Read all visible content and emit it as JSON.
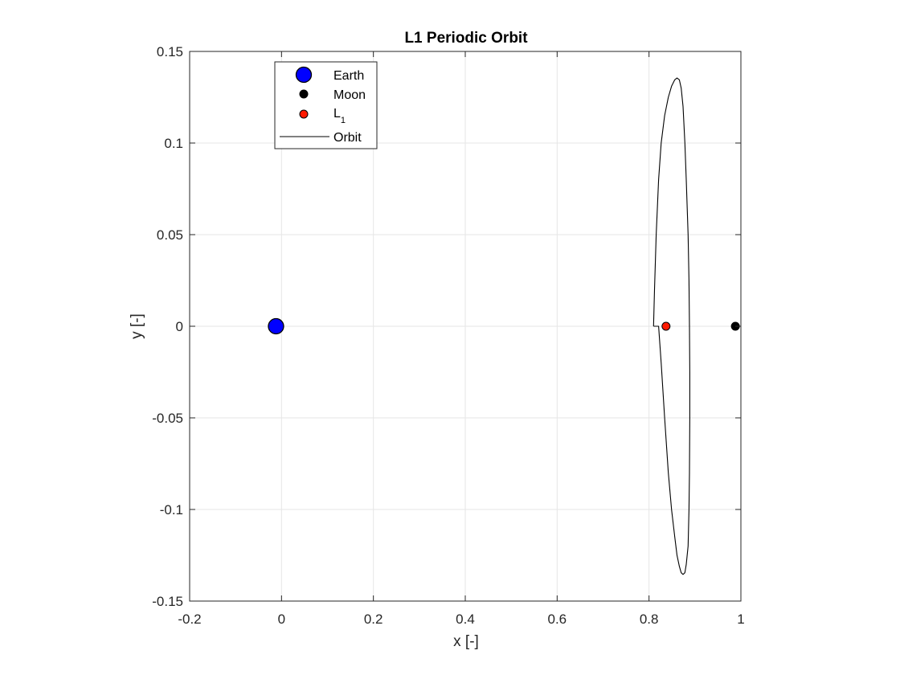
{
  "chart_data": {
    "type": "scatter",
    "title": "L1 Periodic Orbit",
    "xlabel": "x [-]",
    "ylabel": "y [-]",
    "xlim": [
      -0.2,
      1.0
    ],
    "ylim": [
      -0.15,
      0.15
    ],
    "xticks": [
      -0.2,
      0,
      0.2,
      0.4,
      0.6,
      0.8,
      1.0
    ],
    "xtick_labels": [
      "-0.2",
      "0",
      "0.2",
      "0.4",
      "0.6",
      "0.8",
      "1"
    ],
    "yticks": [
      0.15,
      0.1,
      0.05,
      0,
      -0.05,
      -0.1,
      -0.15
    ],
    "ytick_labels": [
      "0.15",
      "0.1",
      "0.05",
      "0",
      "-0.05",
      "-0.1",
      "-0.15"
    ],
    "grid": true,
    "legend_position": "top-left",
    "series": [
      {
        "name": "Earth",
        "kind": "marker",
        "x": [
          -0.012
        ],
        "y": [
          0
        ],
        "color": "#0000ff",
        "marker_size": "large"
      },
      {
        "name": "Moon",
        "kind": "marker",
        "x": [
          0.988
        ],
        "y": [
          0
        ],
        "color": "#000000",
        "marker_size": "small"
      },
      {
        "name": "L",
        "name_subscript": "1",
        "kind": "marker",
        "x": [
          0.837
        ],
        "y": [
          0
        ],
        "color": "#ff1a00",
        "marker_size": "small"
      },
      {
        "name": "Orbit",
        "kind": "line",
        "color": "#000000",
        "x": [
          0.8099,
          0.8119,
          0.8157,
          0.8208,
          0.8265,
          0.834,
          0.842,
          0.849,
          0.856,
          0.861,
          0.866,
          0.87,
          0.874,
          0.878,
          0.881,
          0.885,
          0.887,
          0.888,
          0.8887,
          0.8887,
          0.888,
          0.887,
          0.885,
          0.881,
          0.878,
          0.874,
          0.87,
          0.866,
          0.861,
          0.856,
          0.849,
          0.842,
          0.834,
          0.8265,
          0.8208,
          0.8157,
          0.8119,
          0.8099
        ],
        "y": [
          0.0,
          0.02,
          0.05,
          0.08,
          0.1,
          0.115,
          0.125,
          0.131,
          0.1345,
          0.1355,
          0.1345,
          0.13,
          0.12,
          0.1,
          0.08,
          0.05,
          0.025,
          0.0,
          -0.025,
          -0.05,
          -0.08,
          -0.1,
          -0.12,
          -0.13,
          -0.1345,
          -0.1355,
          -0.1345,
          -0.131,
          -0.125,
          -0.115,
          -0.1,
          -0.08,
          -0.05,
          -0.02,
          0.0,
          0.0,
          0.0,
          0.0
        ]
      }
    ]
  },
  "colors": {
    "grid": "#e6e6e6",
    "axis": "#262626",
    "legend_border": "#262626"
  }
}
